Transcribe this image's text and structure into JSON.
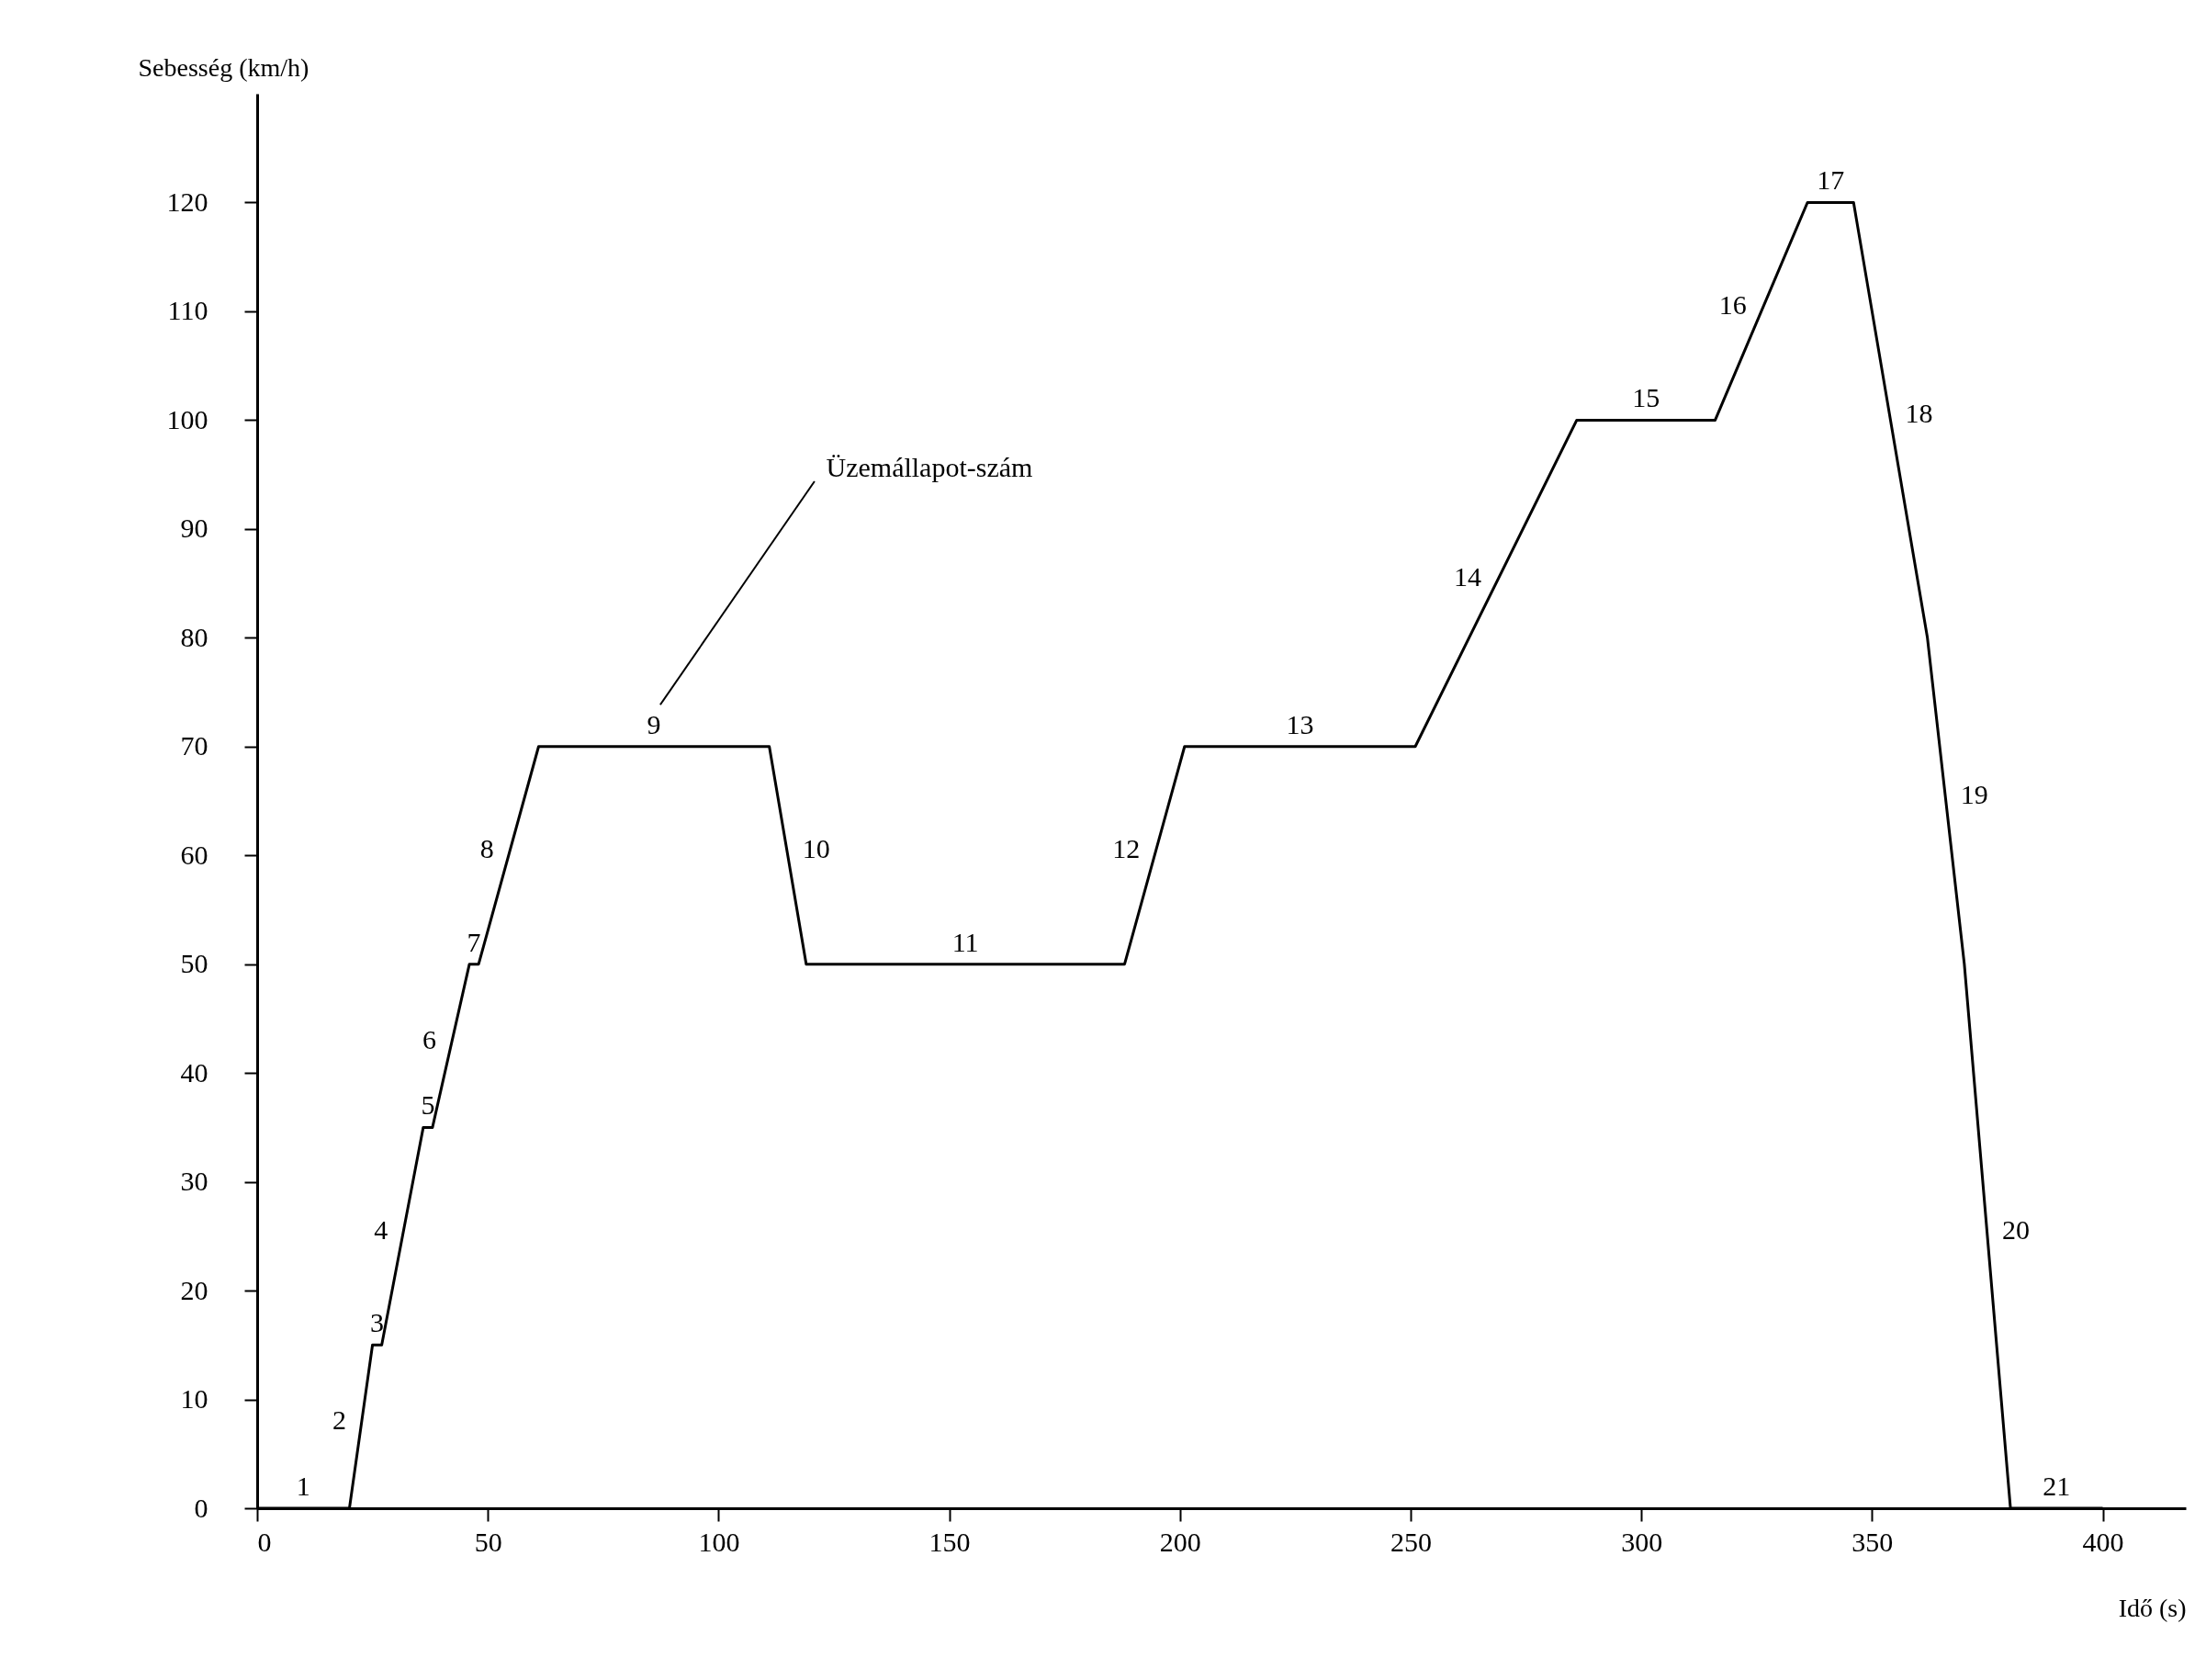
{
  "chart_data": {
    "type": "line",
    "xlabel": "Idő (s)",
    "ylabel": "Sebesség (km/h)",
    "x": [
      0,
      20,
      25,
      27,
      36,
      38,
      46,
      48,
      61,
      111,
      119,
      188,
      201,
      251,
      286,
      316,
      336,
      346,
      362,
      370,
      380,
      400
    ],
    "series": [
      {
        "color": "#000000",
        "values": [
          0,
          0,
          15,
          15,
          35,
          35,
          50,
          50,
          70,
          70,
          50,
          50,
          70,
          70,
          100,
          100,
          120,
          120,
          80,
          50,
          0,
          0
        ]
      }
    ],
    "xlim": [
      0,
      418
    ],
    "ylim": [
      0,
      130
    ],
    "xticks": [
      0,
      50,
      100,
      150,
      200,
      250,
      300,
      350,
      400
    ],
    "yticks": [
      0,
      10,
      20,
      30,
      40,
      50,
      60,
      70,
      80,
      90,
      100,
      110,
      120
    ],
    "grid": false,
    "marker": "none",
    "line_style": "solid",
    "annotations": [
      {
        "text": "1",
        "x": 10,
        "y": 0
      },
      {
        "text": "2",
        "x": 22.5,
        "y": 7.5
      },
      {
        "text": "3",
        "x": 26,
        "y": 15
      },
      {
        "text": "4",
        "x": 31.5,
        "y": 25
      },
      {
        "text": "5",
        "x": 37,
        "y": 35
      },
      {
        "text": "6",
        "x": 42,
        "y": 42.5
      },
      {
        "text": "7",
        "x": 47,
        "y": 50
      },
      {
        "text": "8",
        "x": 54.5,
        "y": 60
      },
      {
        "text": "9",
        "x": 86,
        "y": 70
      },
      {
        "text": "10",
        "x": 115,
        "y": 60
      },
      {
        "text": "11",
        "x": 153.5,
        "y": 50
      },
      {
        "text": "12",
        "x": 194.5,
        "y": 60
      },
      {
        "text": "13",
        "x": 226,
        "y": 70
      },
      {
        "text": "14",
        "x": 268.5,
        "y": 85
      },
      {
        "text": "15",
        "x": 301,
        "y": 100
      },
      {
        "text": "16",
        "x": 326,
        "y": 110
      },
      {
        "text": "17",
        "x": 341,
        "y": 120
      },
      {
        "text": "18",
        "x": 354,
        "y": 100
      },
      {
        "text": "19",
        "x": 366,
        "y": 65
      },
      {
        "text": "20",
        "x": 375,
        "y": 25
      },
      {
        "text": "21",
        "x": 390,
        "y": 0
      },
      "Üzemállapot-szám"
    ]
  }
}
